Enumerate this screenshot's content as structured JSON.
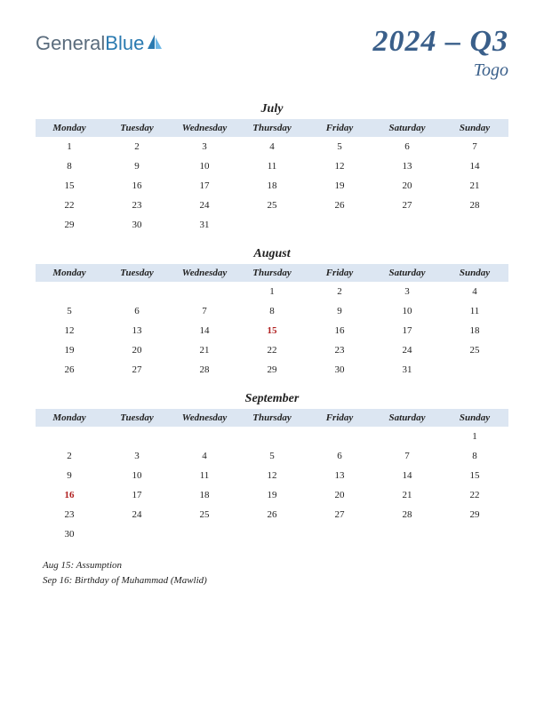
{
  "logo": {
    "general": "General",
    "blue": "Blue"
  },
  "title": {
    "quarter": "2024 – Q3",
    "country": "Togo"
  },
  "day_headers": [
    "Monday",
    "Tuesday",
    "Wednesday",
    "Thursday",
    "Friday",
    "Saturday",
    "Sunday"
  ],
  "header_bg": "#dce6f2",
  "title_color": "#3a5f8a",
  "holiday_color": "#b02020",
  "months": [
    {
      "name": "July",
      "first_weekday": 0,
      "days": 31,
      "holidays": []
    },
    {
      "name": "August",
      "first_weekday": 3,
      "days": 31,
      "holidays": [
        15
      ]
    },
    {
      "name": "September",
      "first_weekday": 6,
      "days": 30,
      "holidays": [
        16
      ]
    }
  ],
  "holiday_notes": [
    "Aug 15: Assumption",
    "Sep 16: Birthday of Muhammad (Mawlid)"
  ]
}
